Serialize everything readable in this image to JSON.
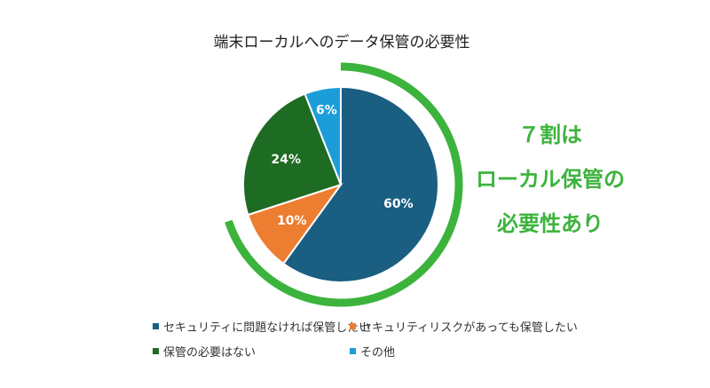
{
  "chart_data": {
    "type": "pie",
    "title": "端末ローカルへのデータ保管の必要性",
    "categories": [
      "セキュリティに問題なければ保管したい",
      "セキュリティリスクがあっても保管したい",
      "保管の必要はない",
      "その他"
    ],
    "values": [
      60,
      10,
      24,
      6
    ],
    "labels": [
      "60%",
      "10%",
      "24%",
      "6%"
    ],
    "colors": [
      "#1a5e82",
      "#ed7d31",
      "#1e6b23",
      "#1b9dd9"
    ],
    "legend_position": "bottom",
    "highlight_arc": {
      "percent": 70,
      "color": "#3cb33c"
    },
    "callout": [
      "７割は",
      "ローカル保管の",
      "必要性あり"
    ]
  }
}
